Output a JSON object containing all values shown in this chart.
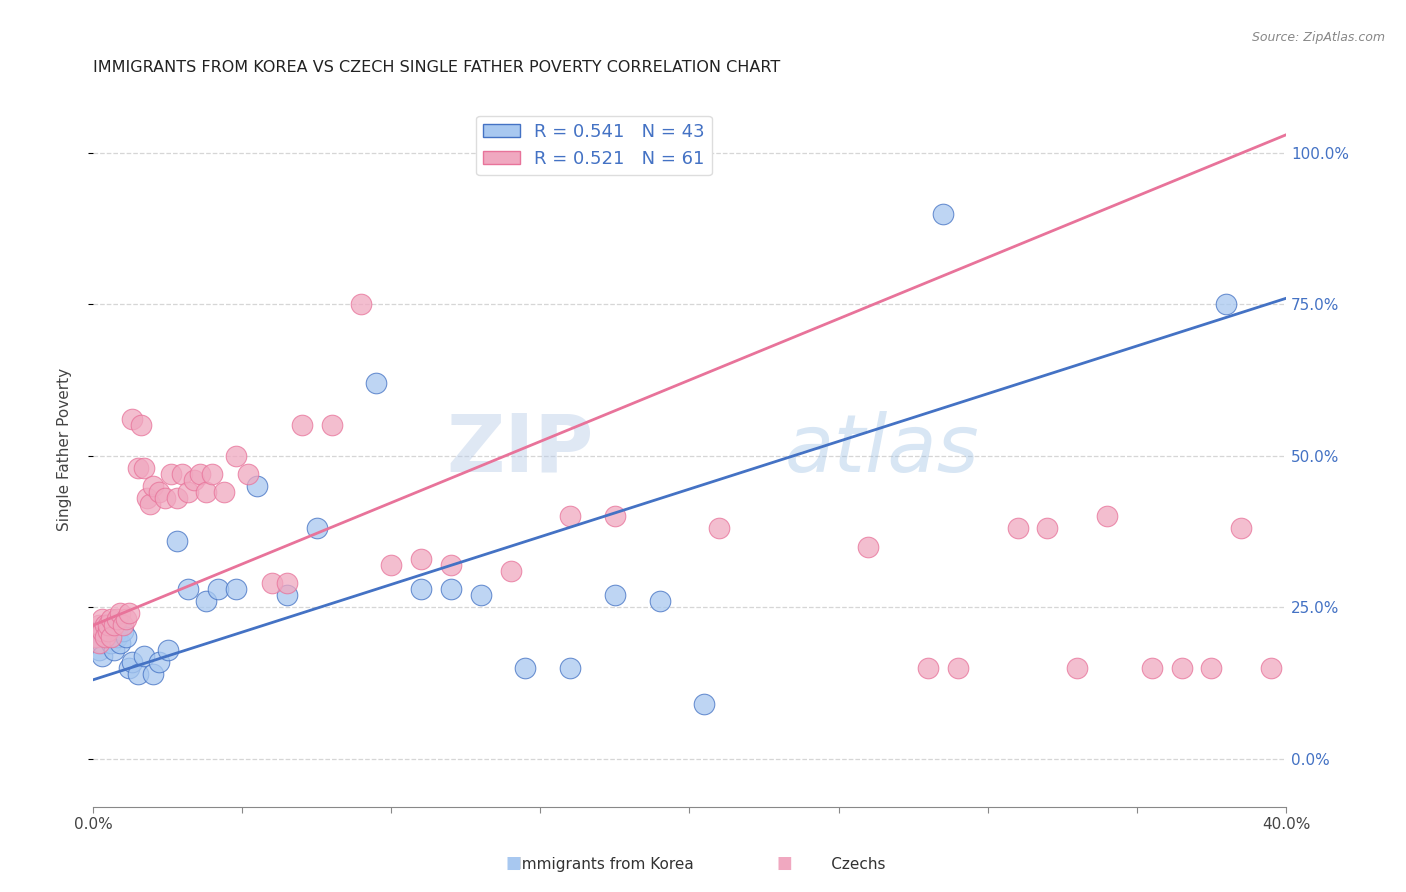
{
  "title": "IMMIGRANTS FROM KOREA VS CZECH SINGLE FATHER POVERTY CORRELATION CHART",
  "source": "Source: ZipAtlas.com",
  "ylabel": "Single Father Poverty",
  "color_korea": "#a8c8f0",
  "color_czech": "#f0a8c0",
  "color_korea_line": "#4472C4",
  "color_czech_line": "#E8739A",
  "color_grid": "#cccccc",
  "watermark_color": "#c8d8f0",
  "x_min": 0.0,
  "x_max": 0.4,
  "y_min": -0.08,
  "y_max": 1.1,
  "korea_line_y0": 0.13,
  "korea_line_y1": 0.76,
  "czech_line_y0": 0.22,
  "czech_line_y1": 1.03,
  "korea_x": [
    0.001,
    0.002,
    0.002,
    0.003,
    0.003,
    0.004,
    0.004,
    0.005,
    0.005,
    0.006,
    0.007,
    0.007,
    0.008,
    0.008,
    0.009,
    0.01,
    0.011,
    0.012,
    0.013,
    0.015,
    0.017,
    0.02,
    0.022,
    0.025,
    0.028,
    0.032,
    0.038,
    0.042,
    0.048,
    0.055,
    0.065,
    0.075,
    0.095,
    0.11,
    0.12,
    0.13,
    0.145,
    0.16,
    0.175,
    0.19,
    0.205,
    0.285,
    0.38
  ],
  "korea_y": [
    0.2,
    0.18,
    0.21,
    0.19,
    0.17,
    0.2,
    0.22,
    0.21,
    0.2,
    0.19,
    0.22,
    0.18,
    0.2,
    0.21,
    0.19,
    0.21,
    0.2,
    0.15,
    0.16,
    0.14,
    0.17,
    0.14,
    0.16,
    0.18,
    0.36,
    0.28,
    0.26,
    0.28,
    0.28,
    0.45,
    0.27,
    0.38,
    0.62,
    0.28,
    0.28,
    0.27,
    0.15,
    0.15,
    0.27,
    0.26,
    0.09,
    0.9,
    0.75
  ],
  "czech_x": [
    0.001,
    0.002,
    0.002,
    0.003,
    0.003,
    0.004,
    0.004,
    0.005,
    0.005,
    0.006,
    0.006,
    0.007,
    0.008,
    0.009,
    0.01,
    0.011,
    0.012,
    0.013,
    0.015,
    0.016,
    0.017,
    0.018,
    0.019,
    0.02,
    0.022,
    0.024,
    0.026,
    0.028,
    0.03,
    0.032,
    0.034,
    0.036,
    0.038,
    0.04,
    0.044,
    0.048,
    0.052,
    0.06,
    0.065,
    0.07,
    0.08,
    0.09,
    0.1,
    0.11,
    0.12,
    0.14,
    0.16,
    0.175,
    0.21,
    0.26,
    0.28,
    0.29,
    0.31,
    0.33,
    0.34,
    0.355,
    0.365,
    0.375,
    0.385,
    0.395,
    0.32
  ],
  "czech_y": [
    0.2,
    0.19,
    0.22,
    0.21,
    0.23,
    0.22,
    0.2,
    0.21,
    0.22,
    0.23,
    0.2,
    0.22,
    0.23,
    0.24,
    0.22,
    0.23,
    0.24,
    0.56,
    0.48,
    0.55,
    0.48,
    0.43,
    0.42,
    0.45,
    0.44,
    0.43,
    0.47,
    0.43,
    0.47,
    0.44,
    0.46,
    0.47,
    0.44,
    0.47,
    0.44,
    0.5,
    0.47,
    0.29,
    0.29,
    0.55,
    0.55,
    0.75,
    0.32,
    0.33,
    0.32,
    0.31,
    0.4,
    0.4,
    0.38,
    0.35,
    0.15,
    0.15,
    0.38,
    0.15,
    0.4,
    0.15,
    0.15,
    0.15,
    0.38,
    0.15,
    0.38
  ]
}
